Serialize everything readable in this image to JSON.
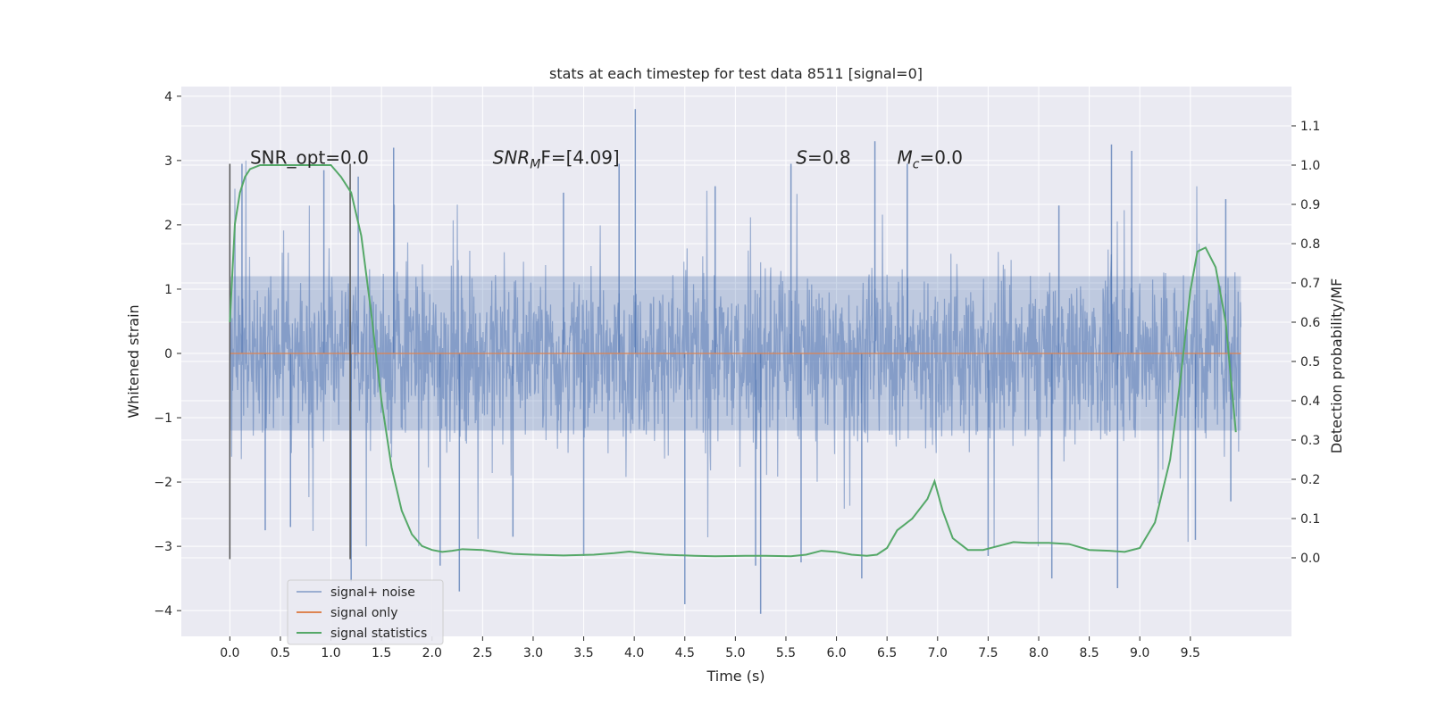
{
  "chart_data": {
    "type": "line",
    "title": "stats at each timestep for test data 8511 [signal=0]",
    "xlabel": "Time (s)",
    "ylabel": "Whitened strain",
    "ylabel_right": "Detection probability/MF",
    "xlim": [
      -0.48,
      10.5
    ],
    "ylim": [
      -4.4,
      4.15
    ],
    "ylim_right": [
      -0.2,
      1.2
    ],
    "x_ticks": [
      0.0,
      0.5,
      1.0,
      1.5,
      2.0,
      2.5,
      3.0,
      3.5,
      4.0,
      4.5,
      5.0,
      5.5,
      6.0,
      6.5,
      7.0,
      7.5,
      8.0,
      8.5,
      9.0,
      9.5
    ],
    "x_tick_labels": [
      "0.0",
      "0.5",
      "1.0",
      "1.5",
      "2.0",
      "2.5",
      "3.0",
      "3.5",
      "4.0",
      "4.5",
      "5.0",
      "5.5",
      "6.0",
      "6.5",
      "7.0",
      "7.5",
      "8.0",
      "8.5",
      "9.0",
      "9.5"
    ],
    "y_ticks": [
      -4,
      -3,
      -2,
      -1,
      0,
      1,
      2,
      3,
      4
    ],
    "y_tick_labels": [
      "−4",
      "−3",
      "−2",
      "−1",
      "0",
      "1",
      "2",
      "3",
      "4"
    ],
    "y_right_ticks": [
      0.0,
      0.1,
      0.2,
      0.3,
      0.4,
      0.5,
      0.6,
      0.7,
      0.8,
      0.9,
      1.0,
      1.1
    ],
    "y_right_tick_labels": [
      "0.0",
      "0.1",
      "0.2",
      "0.3",
      "0.4",
      "0.5",
      "0.6",
      "0.7",
      "0.8",
      "0.9",
      "1.0",
      "1.1"
    ],
    "grid": true,
    "legend_position": "lower-left",
    "annotations": [
      {
        "text": "SNR_opt=0.0",
        "x": 0.2,
        "y": 2.95
      },
      {
        "text": "SNR",
        "sub": "M",
        "rest": "F=[4.09]",
        "italic": true,
        "x": 2.6,
        "y": 2.95
      },
      {
        "text": "S",
        "rest": "=0.8",
        "italic": true,
        "x": 5.6,
        "y": 2.95
      },
      {
        "text": "M",
        "sub": "c",
        "rest": "=0.0",
        "italic": true,
        "x": 6.6,
        "y": 2.95
      }
    ],
    "vertical_markers": [
      {
        "x": 0.0,
        "ymin": -3.2,
        "ymax": 2.95
      },
      {
        "x": 1.19,
        "ymin": -3.2,
        "ymax": 2.95
      }
    ],
    "series": [
      {
        "name": "signal+ noise",
        "color": "#4c72b0",
        "opacity": 0.5,
        "axis": "left",
        "x_range": [
          0.0,
          10.0
        ],
        "core_band": [
          -1.2,
          1.2
        ],
        "extremes": {
          "max": 3.8,
          "min": -4.05
        },
        "spikes": [
          {
            "x": 0.12,
            "y": 2.95
          },
          {
            "x": 0.35,
            "y": -2.75
          },
          {
            "x": 0.6,
            "y": -2.7
          },
          {
            "x": 0.93,
            "y": 2.85
          },
          {
            "x": 1.27,
            "y": 2.75
          },
          {
            "x": 1.2,
            "y": -3.55
          },
          {
            "x": 1.62,
            "y": 3.2
          },
          {
            "x": 2.08,
            "y": -3.3
          },
          {
            "x": 2.27,
            "y": -3.7
          },
          {
            "x": 2.8,
            "y": -2.85
          },
          {
            "x": 3.3,
            "y": 2.5
          },
          {
            "x": 3.5,
            "y": -3.15
          },
          {
            "x": 4.01,
            "y": 3.8
          },
          {
            "x": 3.85,
            "y": 2.95
          },
          {
            "x": 4.5,
            "y": -3.9
          },
          {
            "x": 4.8,
            "y": 2.6
          },
          {
            "x": 5.25,
            "y": -4.05
          },
          {
            "x": 5.2,
            "y": -3.3
          },
          {
            "x": 5.55,
            "y": 2.95
          },
          {
            "x": 5.65,
            "y": -3.25
          },
          {
            "x": 6.25,
            "y": -3.5
          },
          {
            "x": 6.38,
            "y": 3.3
          },
          {
            "x": 6.7,
            "y": 2.95
          },
          {
            "x": 7.5,
            "y": -3.15
          },
          {
            "x": 8.13,
            "y": -3.5
          },
          {
            "x": 8.2,
            "y": 2.3
          },
          {
            "x": 8.72,
            "y": 3.25
          },
          {
            "x": 8.78,
            "y": -3.65
          },
          {
            "x": 8.92,
            "y": 3.15
          },
          {
            "x": 9.55,
            "y": -2.9
          },
          {
            "x": 9.85,
            "y": 2.4
          },
          {
            "x": 9.9,
            "y": -2.3
          }
        ]
      },
      {
        "name": "signal only",
        "color": "#dd8452",
        "axis": "left",
        "x": [
          0.0,
          10.0
        ],
        "y": [
          0.0,
          0.0
        ]
      },
      {
        "name": "signal statistics",
        "color": "#55a868",
        "axis": "right",
        "x": [
          0.0,
          0.05,
          0.1,
          0.15,
          0.2,
          0.3,
          0.5,
          0.7,
          0.9,
          1.0,
          1.1,
          1.2,
          1.3,
          1.4,
          1.5,
          1.6,
          1.7,
          1.8,
          1.9,
          2.0,
          2.1,
          2.2,
          2.3,
          2.5,
          2.8,
          3.0,
          3.3,
          3.6,
          3.8,
          3.95,
          4.1,
          4.3,
          4.6,
          4.8,
          5.1,
          5.3,
          5.55,
          5.7,
          5.85,
          6.0,
          6.15,
          6.3,
          6.4,
          6.5,
          6.6,
          6.75,
          6.9,
          6.97,
          7.05,
          7.15,
          7.3,
          7.45,
          7.6,
          7.75,
          7.9,
          8.1,
          8.3,
          8.5,
          8.7,
          8.85,
          9.0,
          9.15,
          9.3,
          9.4,
          9.5,
          9.57,
          9.65,
          9.75,
          9.85,
          9.95
        ],
        "y": [
          0.6,
          0.85,
          0.93,
          0.97,
          0.99,
          1.0,
          1.0,
          1.0,
          1.0,
          1.0,
          0.97,
          0.93,
          0.82,
          0.62,
          0.4,
          0.23,
          0.12,
          0.06,
          0.03,
          0.02,
          0.015,
          0.018,
          0.022,
          0.02,
          0.01,
          0.008,
          0.006,
          0.008,
          0.012,
          0.016,
          0.012,
          0.008,
          0.005,
          0.004,
          0.005,
          0.005,
          0.004,
          0.008,
          0.018,
          0.015,
          0.008,
          0.005,
          0.008,
          0.025,
          0.07,
          0.1,
          0.15,
          0.195,
          0.12,
          0.05,
          0.02,
          0.02,
          0.03,
          0.04,
          0.038,
          0.038,
          0.035,
          0.02,
          0.018,
          0.015,
          0.025,
          0.09,
          0.25,
          0.45,
          0.68,
          0.78,
          0.79,
          0.74,
          0.6,
          0.32
        ]
      }
    ]
  }
}
